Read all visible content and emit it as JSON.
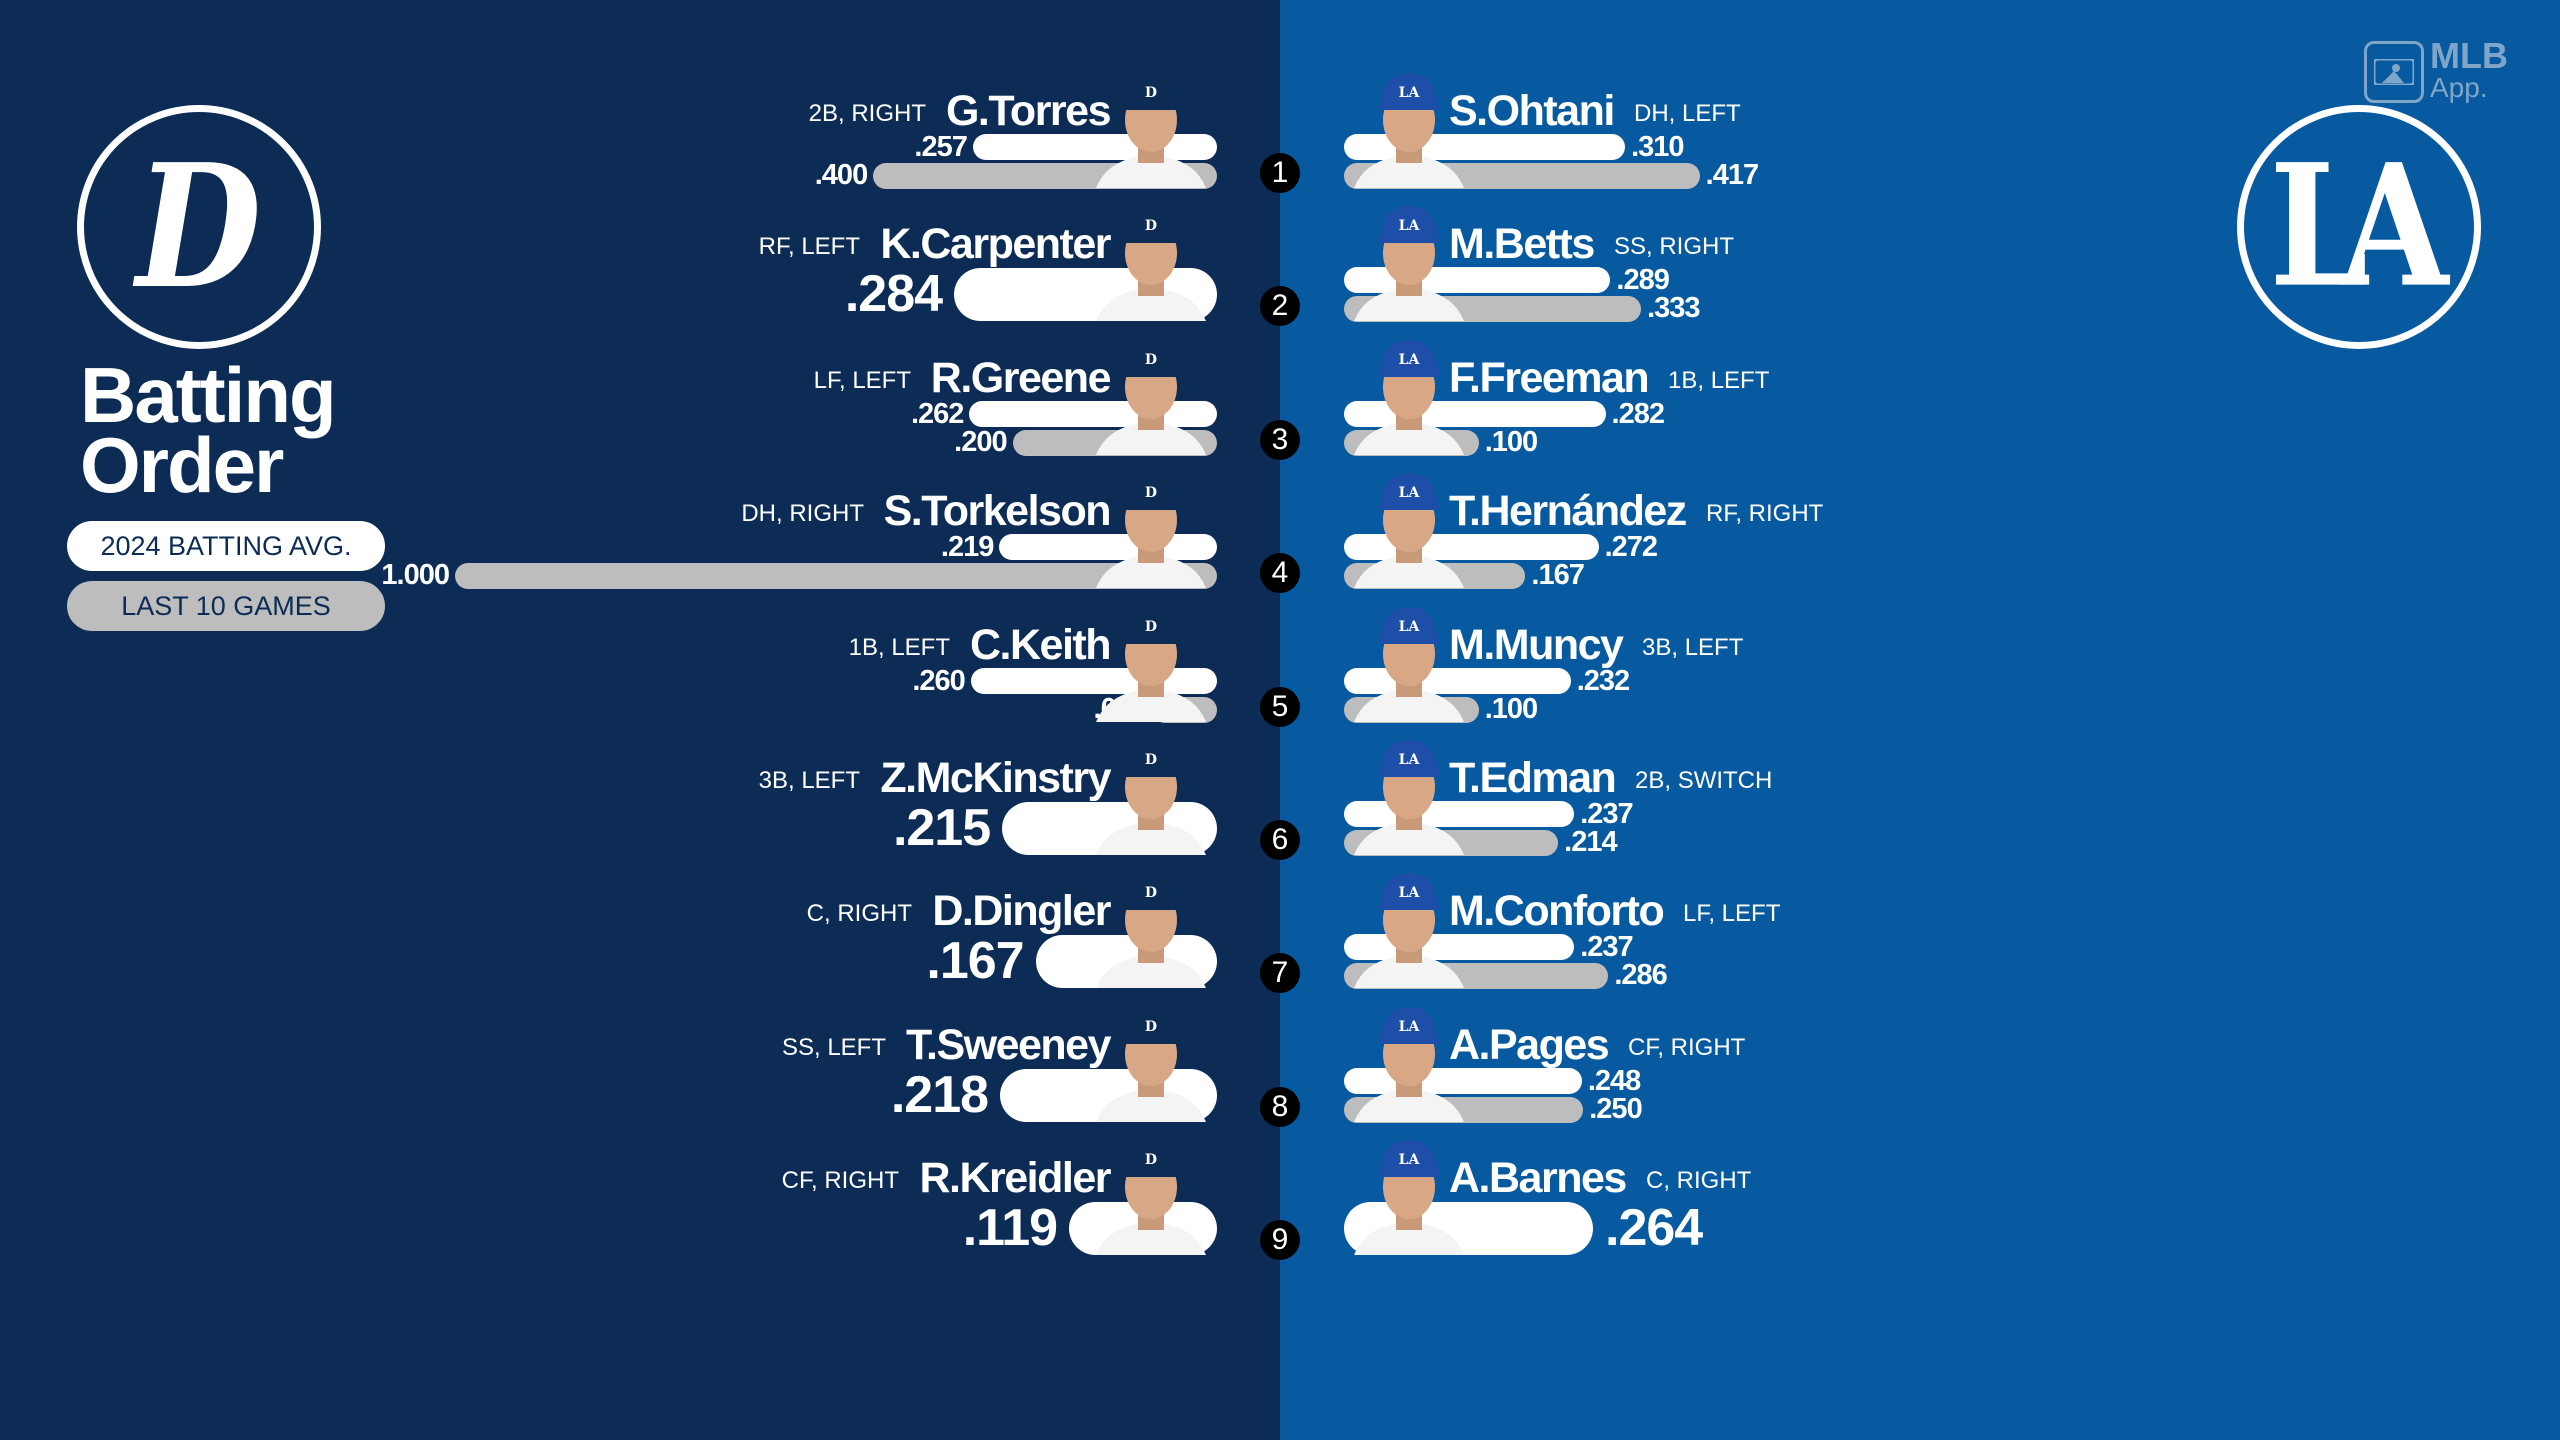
{
  "title_line1": "Batting",
  "title_line2": "Order",
  "legend": {
    "avg_label": "2024 BATTING AVG.",
    "last10_label": "LAST 10 GAMES"
  },
  "brand": {
    "mlb": "MLB",
    "app": "App."
  },
  "logos": {
    "tigers": "D",
    "dodgers": "LA"
  },
  "colors": {
    "tigers_bg": "#0c2c56",
    "dodgers_bg": "#075a9f",
    "avg_bar": "#ffffff",
    "last10_bar": "#bdbdbd",
    "tigers_cap": "#0c2c56",
    "dodgers_cap": "#1d4fa8"
  },
  "order_numbers": [
    "1",
    "2",
    "3",
    "4",
    "5",
    "6",
    "7",
    "8",
    "9"
  ],
  "tigers": [
    {
      "name": "G.Torres",
      "pos": "2B, RIGHT",
      "avg": ".257",
      "last10": ".400"
    },
    {
      "name": "K.Carpenter",
      "pos": "RF, LEFT",
      "avg": ".284",
      "last10": null
    },
    {
      "name": "R.Greene",
      "pos": "LF, LEFT",
      "avg": ".262",
      "last10": ".200"
    },
    {
      "name": "S.Torkelson",
      "pos": "DH, RIGHT",
      "avg": ".219",
      "last10": "1.000"
    },
    {
      "name": "C.Keith",
      "pos": "1B, LEFT",
      "avg": ".260",
      "last10": ".000"
    },
    {
      "name": "Z.McKinstry",
      "pos": "3B, LEFT",
      "avg": ".215",
      "last10": null
    },
    {
      "name": "D.Dingler",
      "pos": "C, RIGHT",
      "avg": ".167",
      "last10": null
    },
    {
      "name": "T.Sweeney",
      "pos": "SS, LEFT",
      "avg": ".218",
      "last10": null
    },
    {
      "name": "R.Kreidler",
      "pos": "CF, RIGHT",
      "avg": ".119",
      "last10": null
    }
  ],
  "dodgers": [
    {
      "name": "S.Ohtani",
      "pos": "DH, LEFT",
      "avg": ".310",
      "last10": ".417"
    },
    {
      "name": "M.Betts",
      "pos": "SS, RIGHT",
      "avg": ".289",
      "last10": ".333"
    },
    {
      "name": "F.Freeman",
      "pos": "1B, LEFT",
      "avg": ".282",
      "last10": ".100"
    },
    {
      "name": "T.Hernández",
      "pos": "RF, RIGHT",
      "avg": ".272",
      "last10": ".167"
    },
    {
      "name": "M.Muncy",
      "pos": "3B, LEFT",
      "avg": ".232",
      "last10": ".100"
    },
    {
      "name": "T.Edman",
      "pos": "2B, SWITCH",
      "avg": ".237",
      "last10": ".214"
    },
    {
      "name": "M.Conforto",
      "pos": "LF, LEFT",
      "avg": ".237",
      "last10": ".286"
    },
    {
      "name": "A.Pages",
      "pos": "CF, RIGHT",
      "avg": ".248",
      "last10": ".250"
    },
    {
      "name": "A.Barnes",
      "pos": "C, RIGHT",
      "avg": ".264",
      "last10": null
    }
  ]
}
